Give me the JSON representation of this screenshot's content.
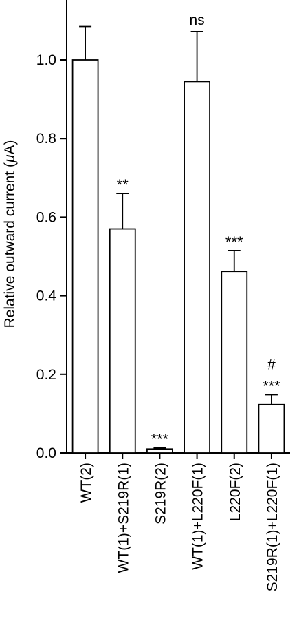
{
  "chart_data": {
    "type": "bar",
    "title": "",
    "xlabel": "",
    "ylabel": "Relative outward current (μA)",
    "ylabel_parts": {
      "before": "Relative outward current (",
      "symbol": "μ",
      "after": "A)"
    },
    "ylim": [
      0,
      1.15
    ],
    "yticks": [
      0.0,
      0.2,
      0.4,
      0.6,
      0.8,
      1.0
    ],
    "ytick_labels": [
      "0.0",
      "0.2",
      "0.4",
      "0.6",
      "0.8",
      "1.0"
    ],
    "categories": [
      "WT(2)",
      "WT(1)+S219R(1)",
      "S219R(2)",
      "WT(1)+L220F(1)",
      "L220F(2)",
      "S219R(1)+L220F(1)"
    ],
    "values": [
      1.0,
      0.57,
      0.01,
      0.945,
      0.462,
      0.123
    ],
    "errors": [
      0.085,
      0.09,
      0.003,
      0.127,
      0.053,
      0.025
    ],
    "annotations": [
      "",
      "**",
      "***",
      "ns",
      "***",
      "***"
    ],
    "annotations_extra": [
      "",
      "",
      "",
      "",
      "",
      "#"
    ],
    "grid": false,
    "legend": "none"
  }
}
